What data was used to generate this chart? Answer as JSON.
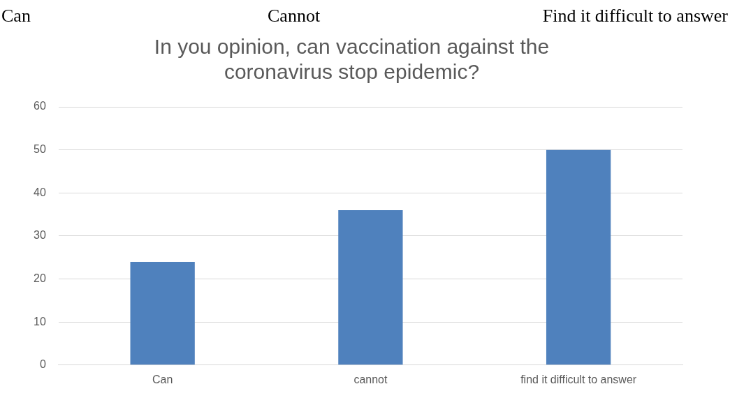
{
  "chart_data": {
    "type": "bar",
    "title": "In you opinion, can vaccination against the coronavirus stop epidemic?",
    "annotations": [
      "Can",
      "Cannot",
      "Find it difficult to answer"
    ],
    "categories": [
      "Can",
      "cannot",
      "find it difficult to answer"
    ],
    "values": [
      24,
      36,
      50
    ],
    "color": "#4f81bd",
    "ylim": [
      0,
      60
    ],
    "yticks": [
      0,
      10,
      20,
      30,
      40,
      50,
      60
    ],
    "grid": "y",
    "legend": false
  }
}
